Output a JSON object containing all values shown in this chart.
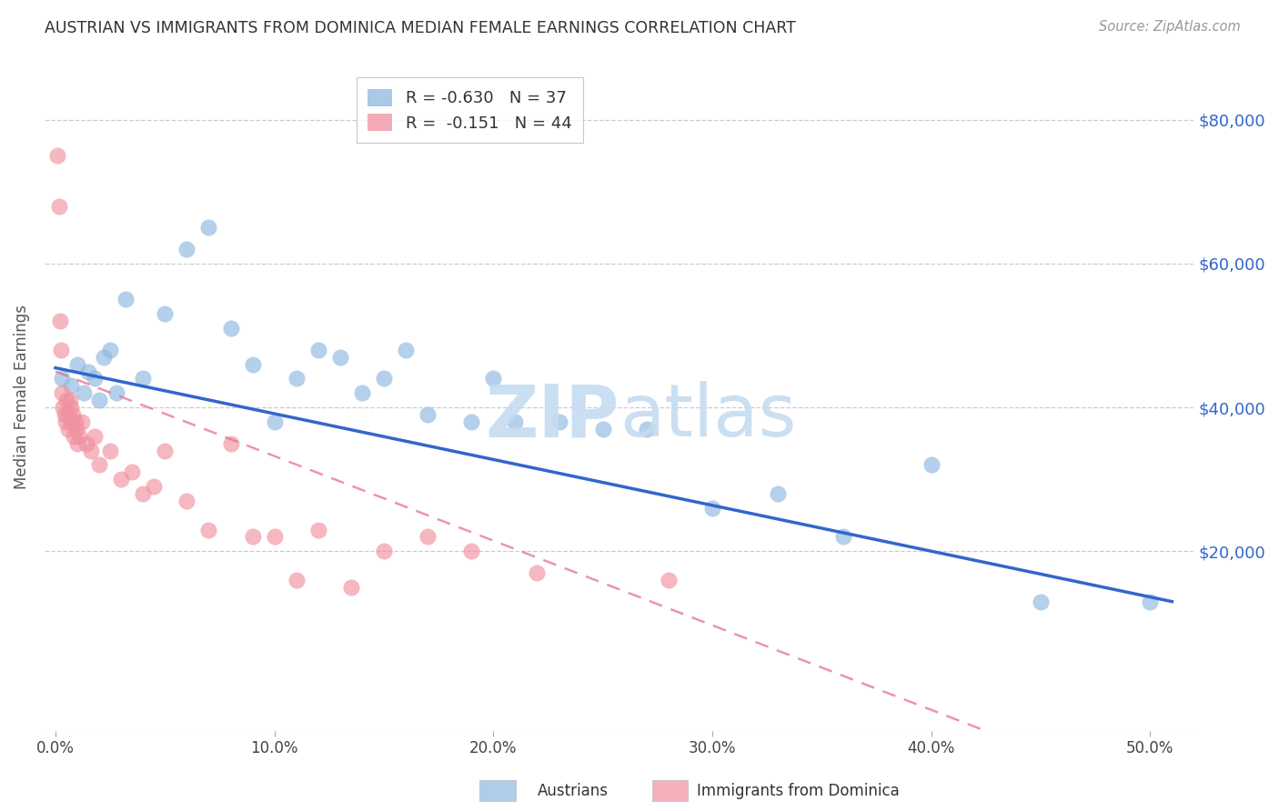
{
  "title": "AUSTRIAN VS IMMIGRANTS FROM DOMINICA MEDIAN FEMALE EARNINGS CORRELATION CHART",
  "source": "Source: ZipAtlas.com",
  "xlabel_ticks": [
    "0.0%",
    "10.0%",
    "20.0%",
    "30.0%",
    "40.0%",
    "50.0%"
  ],
  "xlabel_vals": [
    0.0,
    10.0,
    20.0,
    30.0,
    40.0,
    50.0
  ],
  "ylabel_ticks": [
    20000,
    40000,
    60000,
    80000
  ],
  "ylabel_labels": [
    "$20,000",
    "$40,000",
    "$60,000",
    "$80,000"
  ],
  "ylim": [
    -5000,
    88000
  ],
  "xlim": [
    -0.5,
    52.0
  ],
  "legend_blue_r": "R = -0.630",
  "legend_blue_n": "N = 37",
  "legend_pink_r": "R =  -0.151",
  "legend_pink_n": "N = 44",
  "blue_color": "#8DB8E0",
  "pink_color": "#F0919F",
  "trend_blue": "#3366CC",
  "trend_pink": "#E87090",
  "watermark_color": "#C5DCF0",
  "blue_scatter_x": [
    0.3,
    0.7,
    1.0,
    1.3,
    1.5,
    1.8,
    2.0,
    2.2,
    2.5,
    2.8,
    3.2,
    4.0,
    5.0,
    6.0,
    7.0,
    8.0,
    9.0,
    10.0,
    11.0,
    12.0,
    13.0,
    14.0,
    15.0,
    16.0,
    17.0,
    19.0,
    20.0,
    21.0,
    23.0,
    25.0,
    27.0,
    30.0,
    33.0,
    36.0,
    40.0,
    45.0,
    50.0
  ],
  "blue_scatter_y": [
    44000,
    43000,
    46000,
    42000,
    45000,
    44000,
    41000,
    47000,
    48000,
    42000,
    55000,
    44000,
    53000,
    62000,
    65000,
    51000,
    46000,
    38000,
    44000,
    48000,
    47000,
    42000,
    44000,
    48000,
    39000,
    38000,
    44000,
    38000,
    38000,
    37000,
    37000,
    26000,
    28000,
    22000,
    32000,
    13000,
    13000
  ],
  "pink_scatter_x": [
    0.1,
    0.15,
    0.2,
    0.25,
    0.3,
    0.35,
    0.4,
    0.45,
    0.5,
    0.55,
    0.6,
    0.65,
    0.7,
    0.75,
    0.8,
    0.85,
    0.9,
    0.95,
    1.0,
    1.1,
    1.2,
    1.4,
    1.6,
    1.8,
    2.0,
    2.5,
    3.0,
    3.5,
    4.0,
    4.5,
    5.0,
    6.0,
    7.0,
    8.0,
    9.0,
    10.0,
    11.0,
    12.0,
    13.5,
    15.0,
    17.0,
    19.0,
    22.0,
    28.0
  ],
  "pink_scatter_y": [
    75000,
    68000,
    52000,
    48000,
    42000,
    40000,
    39000,
    38000,
    41000,
    39000,
    37000,
    41000,
    40000,
    38000,
    39000,
    36000,
    38000,
    37000,
    35000,
    36000,
    38000,
    35000,
    34000,
    36000,
    32000,
    34000,
    30000,
    31000,
    28000,
    29000,
    34000,
    27000,
    23000,
    35000,
    22000,
    22000,
    16000,
    23000,
    15000,
    20000,
    22000,
    20000,
    17000,
    16000
  ]
}
